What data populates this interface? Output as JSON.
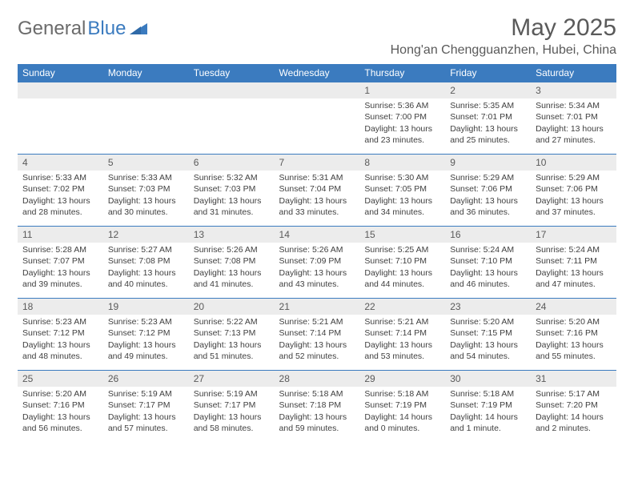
{
  "logo": {
    "general": "General",
    "blue": "Blue"
  },
  "title": "May 2025",
  "location": "Hong'an Chengguanzhen, Hubei, China",
  "colors": {
    "header_bg": "#3b7bbf",
    "header_text": "#ffffff",
    "daynum_bg": "#ececec",
    "border": "#3b7bbf",
    "text": "#404040",
    "logo_gray": "#6b6b6b",
    "logo_blue": "#3b7bbf"
  },
  "weekdays": [
    "Sunday",
    "Monday",
    "Tuesday",
    "Wednesday",
    "Thursday",
    "Friday",
    "Saturday"
  ],
  "weeks": [
    [
      null,
      null,
      null,
      null,
      {
        "num": "1",
        "sunrise": "Sunrise: 5:36 AM",
        "sunset": "Sunset: 7:00 PM",
        "daylight": "Daylight: 13 hours and 23 minutes."
      },
      {
        "num": "2",
        "sunrise": "Sunrise: 5:35 AM",
        "sunset": "Sunset: 7:01 PM",
        "daylight": "Daylight: 13 hours and 25 minutes."
      },
      {
        "num": "3",
        "sunrise": "Sunrise: 5:34 AM",
        "sunset": "Sunset: 7:01 PM",
        "daylight": "Daylight: 13 hours and 27 minutes."
      }
    ],
    [
      {
        "num": "4",
        "sunrise": "Sunrise: 5:33 AM",
        "sunset": "Sunset: 7:02 PM",
        "daylight": "Daylight: 13 hours and 28 minutes."
      },
      {
        "num": "5",
        "sunrise": "Sunrise: 5:33 AM",
        "sunset": "Sunset: 7:03 PM",
        "daylight": "Daylight: 13 hours and 30 minutes."
      },
      {
        "num": "6",
        "sunrise": "Sunrise: 5:32 AM",
        "sunset": "Sunset: 7:03 PM",
        "daylight": "Daylight: 13 hours and 31 minutes."
      },
      {
        "num": "7",
        "sunrise": "Sunrise: 5:31 AM",
        "sunset": "Sunset: 7:04 PM",
        "daylight": "Daylight: 13 hours and 33 minutes."
      },
      {
        "num": "8",
        "sunrise": "Sunrise: 5:30 AM",
        "sunset": "Sunset: 7:05 PM",
        "daylight": "Daylight: 13 hours and 34 minutes."
      },
      {
        "num": "9",
        "sunrise": "Sunrise: 5:29 AM",
        "sunset": "Sunset: 7:06 PM",
        "daylight": "Daylight: 13 hours and 36 minutes."
      },
      {
        "num": "10",
        "sunrise": "Sunrise: 5:29 AM",
        "sunset": "Sunset: 7:06 PM",
        "daylight": "Daylight: 13 hours and 37 minutes."
      }
    ],
    [
      {
        "num": "11",
        "sunrise": "Sunrise: 5:28 AM",
        "sunset": "Sunset: 7:07 PM",
        "daylight": "Daylight: 13 hours and 39 minutes."
      },
      {
        "num": "12",
        "sunrise": "Sunrise: 5:27 AM",
        "sunset": "Sunset: 7:08 PM",
        "daylight": "Daylight: 13 hours and 40 minutes."
      },
      {
        "num": "13",
        "sunrise": "Sunrise: 5:26 AM",
        "sunset": "Sunset: 7:08 PM",
        "daylight": "Daylight: 13 hours and 41 minutes."
      },
      {
        "num": "14",
        "sunrise": "Sunrise: 5:26 AM",
        "sunset": "Sunset: 7:09 PM",
        "daylight": "Daylight: 13 hours and 43 minutes."
      },
      {
        "num": "15",
        "sunrise": "Sunrise: 5:25 AM",
        "sunset": "Sunset: 7:10 PM",
        "daylight": "Daylight: 13 hours and 44 minutes."
      },
      {
        "num": "16",
        "sunrise": "Sunrise: 5:24 AM",
        "sunset": "Sunset: 7:10 PM",
        "daylight": "Daylight: 13 hours and 46 minutes."
      },
      {
        "num": "17",
        "sunrise": "Sunrise: 5:24 AM",
        "sunset": "Sunset: 7:11 PM",
        "daylight": "Daylight: 13 hours and 47 minutes."
      }
    ],
    [
      {
        "num": "18",
        "sunrise": "Sunrise: 5:23 AM",
        "sunset": "Sunset: 7:12 PM",
        "daylight": "Daylight: 13 hours and 48 minutes."
      },
      {
        "num": "19",
        "sunrise": "Sunrise: 5:23 AM",
        "sunset": "Sunset: 7:12 PM",
        "daylight": "Daylight: 13 hours and 49 minutes."
      },
      {
        "num": "20",
        "sunrise": "Sunrise: 5:22 AM",
        "sunset": "Sunset: 7:13 PM",
        "daylight": "Daylight: 13 hours and 51 minutes."
      },
      {
        "num": "21",
        "sunrise": "Sunrise: 5:21 AM",
        "sunset": "Sunset: 7:14 PM",
        "daylight": "Daylight: 13 hours and 52 minutes."
      },
      {
        "num": "22",
        "sunrise": "Sunrise: 5:21 AM",
        "sunset": "Sunset: 7:14 PM",
        "daylight": "Daylight: 13 hours and 53 minutes."
      },
      {
        "num": "23",
        "sunrise": "Sunrise: 5:20 AM",
        "sunset": "Sunset: 7:15 PM",
        "daylight": "Daylight: 13 hours and 54 minutes."
      },
      {
        "num": "24",
        "sunrise": "Sunrise: 5:20 AM",
        "sunset": "Sunset: 7:16 PM",
        "daylight": "Daylight: 13 hours and 55 minutes."
      }
    ],
    [
      {
        "num": "25",
        "sunrise": "Sunrise: 5:20 AM",
        "sunset": "Sunset: 7:16 PM",
        "daylight": "Daylight: 13 hours and 56 minutes."
      },
      {
        "num": "26",
        "sunrise": "Sunrise: 5:19 AM",
        "sunset": "Sunset: 7:17 PM",
        "daylight": "Daylight: 13 hours and 57 minutes."
      },
      {
        "num": "27",
        "sunrise": "Sunrise: 5:19 AM",
        "sunset": "Sunset: 7:17 PM",
        "daylight": "Daylight: 13 hours and 58 minutes."
      },
      {
        "num": "28",
        "sunrise": "Sunrise: 5:18 AM",
        "sunset": "Sunset: 7:18 PM",
        "daylight": "Daylight: 13 hours and 59 minutes."
      },
      {
        "num": "29",
        "sunrise": "Sunrise: 5:18 AM",
        "sunset": "Sunset: 7:19 PM",
        "daylight": "Daylight: 14 hours and 0 minutes."
      },
      {
        "num": "30",
        "sunrise": "Sunrise: 5:18 AM",
        "sunset": "Sunset: 7:19 PM",
        "daylight": "Daylight: 14 hours and 1 minute."
      },
      {
        "num": "31",
        "sunrise": "Sunrise: 5:17 AM",
        "sunset": "Sunset: 7:20 PM",
        "daylight": "Daylight: 14 hours and 2 minutes."
      }
    ]
  ]
}
